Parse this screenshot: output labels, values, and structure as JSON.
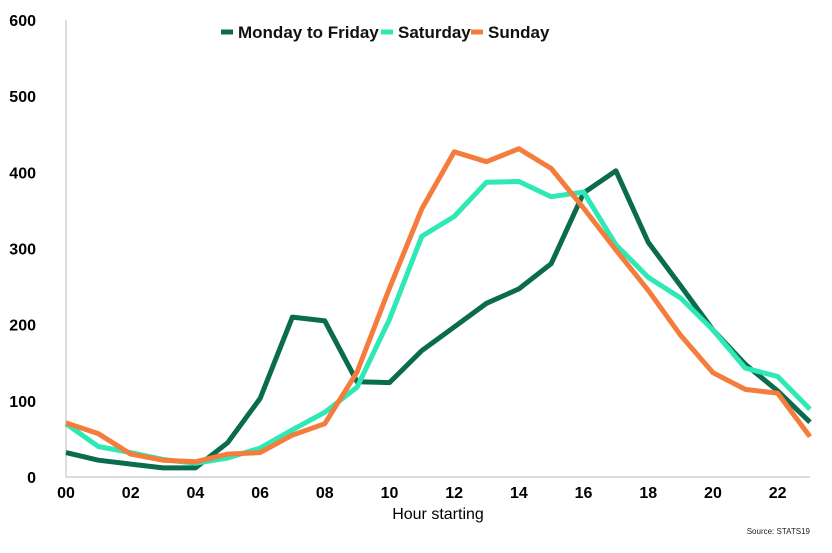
{
  "chart_data": {
    "type": "line",
    "title": "",
    "xlabel": "Hour starting",
    "ylabel": "",
    "source": "Source: STATS19",
    "x": [
      0,
      1,
      2,
      3,
      4,
      5,
      6,
      7,
      8,
      9,
      10,
      11,
      12,
      13,
      14,
      15,
      16,
      17,
      18,
      19,
      20,
      21,
      22,
      23
    ],
    "x_tick_labels": [
      "00",
      "02",
      "04",
      "06",
      "08",
      "10",
      "12",
      "14",
      "16",
      "18",
      "20",
      "22"
    ],
    "x_tick_values": [
      0,
      2,
      4,
      6,
      8,
      10,
      12,
      14,
      16,
      18,
      20,
      22
    ],
    "xlim": [
      0,
      23
    ],
    "ylim": [
      0,
      600
    ],
    "y_ticks": [
      0,
      100,
      200,
      300,
      400,
      500,
      600
    ],
    "legend_position": "top-center",
    "grid": false,
    "series": [
      {
        "name": "Monday to Friday",
        "color": "#0b6b4e",
        "values": [
          32,
          22,
          17,
          12,
          12,
          45,
          103,
          210,
          205,
          125,
          124,
          166,
          197,
          228,
          247,
          280,
          373,
          402,
          308,
          251,
          193,
          148,
          113,
          72
        ]
      },
      {
        "name": "Saturday",
        "color": "#2ee8b6",
        "values": [
          70,
          40,
          32,
          23,
          18,
          25,
          38,
          62,
          85,
          118,
          207,
          316,
          342,
          387,
          388,
          368,
          374,
          305,
          262,
          235,
          193,
          143,
          132,
          89
        ]
      },
      {
        "name": "Sunday",
        "color": "#f47c3c",
        "values": [
          71,
          57,
          30,
          22,
          20,
          30,
          32,
          55,
          70,
          138,
          248,
          352,
          427,
          414,
          431,
          405,
          353,
          298,
          245,
          186,
          137,
          115,
          110,
          53
        ]
      }
    ]
  }
}
